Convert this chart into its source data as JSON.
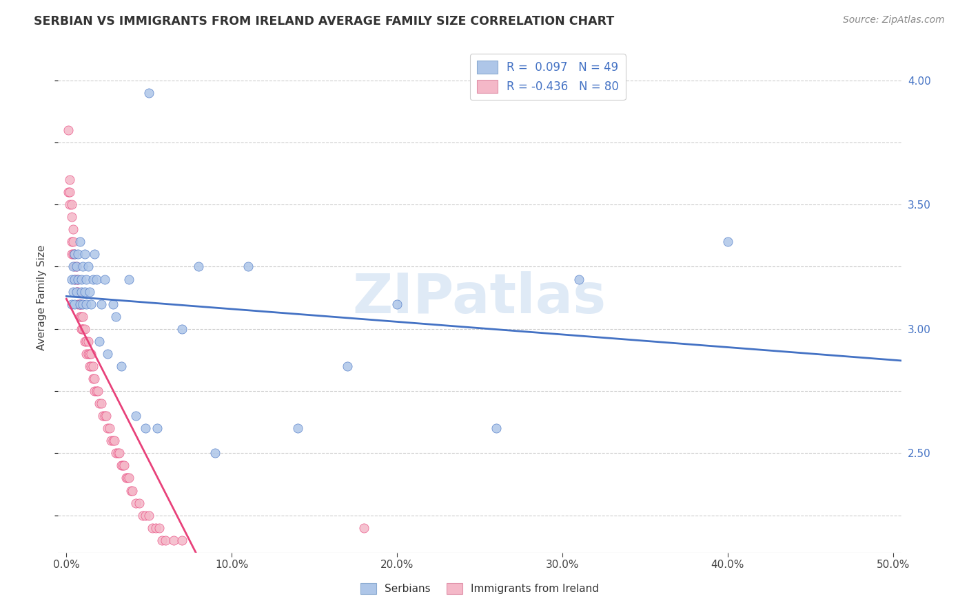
{
  "title": "SERBIAN VS IMMIGRANTS FROM IRELAND AVERAGE FAMILY SIZE CORRELATION CHART",
  "source": "Source: ZipAtlas.com",
  "ylabel": "Average Family Size",
  "ylim": [
    2.1,
    4.15
  ],
  "xlim": [
    -0.005,
    0.505
  ],
  "right_yticks": [
    2.5,
    3.0,
    3.5,
    4.0
  ],
  "legend_r_serbian": " 0.097",
  "legend_n_serbian": "49",
  "legend_r_ireland": "-0.436",
  "legend_n_ireland": "80",
  "serbian_color": "#aec6e8",
  "ireland_color": "#f4b8c8",
  "trendline_serbian_color": "#4472c4",
  "trendline_ireland_color": "#e8417a",
  "watermark": "ZIPatlas",
  "serbian_x": [
    0.003,
    0.003,
    0.004,
    0.004,
    0.005,
    0.005,
    0.005,
    0.006,
    0.006,
    0.007,
    0.007,
    0.008,
    0.008,
    0.009,
    0.009,
    0.01,
    0.01,
    0.011,
    0.011,
    0.012,
    0.012,
    0.013,
    0.014,
    0.015,
    0.016,
    0.017,
    0.018,
    0.02,
    0.021,
    0.023,
    0.025,
    0.028,
    0.03,
    0.033,
    0.038,
    0.042,
    0.048,
    0.055,
    0.11,
    0.2,
    0.31,
    0.4,
    0.17,
    0.26,
    0.14,
    0.07,
    0.08,
    0.09,
    0.05
  ],
  "serbian_y": [
    3.1,
    3.2,
    3.15,
    3.25,
    3.1,
    3.2,
    3.3,
    3.15,
    3.25,
    3.2,
    3.3,
    3.1,
    3.35,
    3.15,
    3.2,
    3.25,
    3.1,
    3.3,
    3.15,
    3.2,
    3.1,
    3.25,
    3.15,
    3.1,
    3.2,
    3.3,
    3.2,
    2.95,
    3.1,
    3.2,
    2.9,
    3.1,
    3.05,
    2.85,
    3.2,
    2.65,
    2.6,
    2.6,
    3.25,
    3.1,
    3.2,
    3.35,
    2.85,
    2.6,
    2.6,
    3.0,
    3.25,
    2.5,
    3.95
  ],
  "ireland_x": [
    0.001,
    0.001,
    0.002,
    0.002,
    0.002,
    0.003,
    0.003,
    0.003,
    0.003,
    0.004,
    0.004,
    0.004,
    0.005,
    0.005,
    0.005,
    0.006,
    0.006,
    0.006,
    0.007,
    0.007,
    0.007,
    0.008,
    0.008,
    0.008,
    0.009,
    0.009,
    0.009,
    0.01,
    0.01,
    0.01,
    0.011,
    0.011,
    0.012,
    0.012,
    0.013,
    0.013,
    0.014,
    0.014,
    0.015,
    0.015,
    0.016,
    0.016,
    0.017,
    0.017,
    0.018,
    0.019,
    0.02,
    0.021,
    0.022,
    0.023,
    0.024,
    0.025,
    0.026,
    0.027,
    0.028,
    0.029,
    0.03,
    0.031,
    0.032,
    0.033,
    0.034,
    0.035,
    0.036,
    0.037,
    0.038,
    0.039,
    0.04,
    0.042,
    0.044,
    0.046,
    0.048,
    0.05,
    0.052,
    0.054,
    0.056,
    0.058,
    0.06,
    0.065,
    0.07,
    0.18
  ],
  "ireland_y": [
    3.8,
    3.55,
    3.6,
    3.5,
    3.55,
    3.45,
    3.5,
    3.3,
    3.35,
    3.35,
    3.3,
    3.4,
    3.3,
    3.2,
    3.25,
    3.25,
    3.15,
    3.2,
    3.2,
    3.1,
    3.15,
    3.1,
    3.05,
    3.1,
    3.05,
    3.0,
    3.1,
    3.05,
    3.0,
    3.0,
    3.0,
    2.95,
    2.95,
    2.9,
    2.95,
    2.9,
    2.9,
    2.85,
    2.9,
    2.85,
    2.85,
    2.8,
    2.8,
    2.75,
    2.75,
    2.75,
    2.7,
    2.7,
    2.65,
    2.65,
    2.65,
    2.6,
    2.6,
    2.55,
    2.55,
    2.55,
    2.5,
    2.5,
    2.5,
    2.45,
    2.45,
    2.45,
    2.4,
    2.4,
    2.4,
    2.35,
    2.35,
    2.3,
    2.3,
    2.25,
    2.25,
    2.25,
    2.2,
    2.2,
    2.2,
    2.15,
    2.15,
    2.15,
    2.15,
    2.2
  ],
  "serbia_trendline_x0": 0.0,
  "serbia_trendline_x1": 0.505,
  "ireland_trendline_x0": 0.0,
  "ireland_trendline_x1": 0.22
}
